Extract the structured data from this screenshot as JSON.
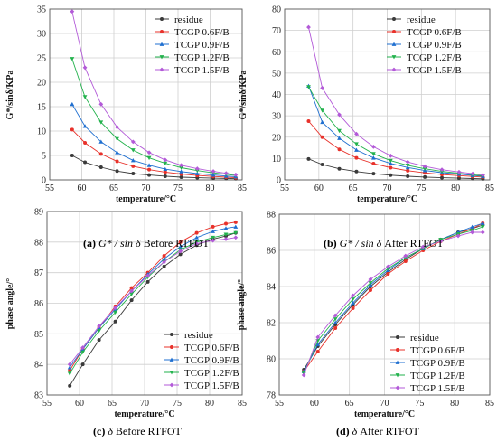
{
  "captions": [
    {
      "letter": "(a)",
      "symbol": "G* / sin δ",
      "text": "Before RTFOT"
    },
    {
      "letter": "(b)",
      "symbol": "G* / sin δ",
      "text": "After RTFOT"
    },
    {
      "letter": "(c)",
      "symbol": "δ",
      "text": "Before RTFOT"
    },
    {
      "letter": "(d)",
      "symbol": "δ",
      "text": "After RTFOT"
    }
  ],
  "series_styles": [
    {
      "name": "residue",
      "color": "#3a3a3a",
      "marker": "circle"
    },
    {
      "name": "TCGP 0.6F/B",
      "color": "#e8312a",
      "marker": "circle"
    },
    {
      "name": "TCGP 0.9F/B",
      "color": "#1f6fd0",
      "marker": "triangle"
    },
    {
      "name": "TCGP 1.2F/B",
      "color": "#22b24c",
      "marker": "triangle-down"
    },
    {
      "name": "TCGP 1.5F/B",
      "color": "#b35ad8",
      "marker": "diamond"
    }
  ],
  "chart_data": [
    {
      "type": "line",
      "xlabel": "temperature/°C",
      "ylabel": "G*/sinδ/KPa",
      "xlim": [
        55,
        85
      ],
      "ylim": [
        0,
        35
      ],
      "xticks": [
        55,
        60,
        65,
        70,
        75,
        80,
        85
      ],
      "yticks": [
        0,
        5,
        10,
        15,
        20,
        25,
        30,
        35
      ],
      "grid": true,
      "legend": "top-right",
      "x": [
        58.5,
        60.5,
        63,
        65.5,
        68,
        70.5,
        73,
        75.5,
        78,
        80.5,
        82.5,
        84
      ],
      "series": [
        {
          "name": "residue",
          "values": [
            5.0,
            3.6,
            2.6,
            1.8,
            1.3,
            1.0,
            0.75,
            0.55,
            0.45,
            0.35,
            0.3,
            0.25
          ]
        },
        {
          "name": "TCGP 0.6F/B",
          "values": [
            10.3,
            7.6,
            5.3,
            3.8,
            2.8,
            2.1,
            1.6,
            1.2,
            0.9,
            0.7,
            0.55,
            0.45
          ]
        },
        {
          "name": "TCGP 0.9F/B",
          "values": [
            15.5,
            11.0,
            7.8,
            5.6,
            4.0,
            3.0,
            2.2,
            1.7,
            1.3,
            1.0,
            0.8,
            0.65
          ]
        },
        {
          "name": "TCGP 1.2F/B",
          "values": [
            24.8,
            17.0,
            11.8,
            8.4,
            6.1,
            4.5,
            3.4,
            2.5,
            1.9,
            1.45,
            1.15,
            0.9
          ]
        },
        {
          "name": "TCGP 1.5F/B",
          "values": [
            34.5,
            23.0,
            15.5,
            10.8,
            7.8,
            5.6,
            4.1,
            3.0,
            2.3,
            1.75,
            1.35,
            1.05
          ]
        }
      ]
    },
    {
      "type": "line",
      "xlabel": "temperature/°C",
      "ylabel": "G*/sinδ/KPa",
      "xlim": [
        55,
        85
      ],
      "ylim": [
        0,
        80
      ],
      "xticks": [
        55,
        60,
        65,
        70,
        75,
        80,
        85
      ],
      "yticks": [
        0,
        10,
        20,
        30,
        40,
        50,
        60,
        70,
        80
      ],
      "grid": true,
      "legend": "top-right",
      "x": [
        58.5,
        60.5,
        63,
        65.5,
        68,
        70.5,
        73,
        75.5,
        78,
        80.5,
        82.5,
        84
      ],
      "series": [
        {
          "name": "residue",
          "values": [
            9.8,
            7.2,
            5.2,
            3.9,
            2.9,
            2.2,
            1.7,
            1.3,
            1.0,
            0.8,
            0.65,
            0.5
          ]
        },
        {
          "name": "TCGP 0.6F/B",
          "values": [
            27.5,
            20.0,
            14.3,
            10.3,
            7.6,
            5.7,
            4.3,
            3.3,
            2.5,
            2.0,
            1.6,
            1.3
          ]
        },
        {
          "name": "TCGP 0.9F/B",
          "values": [
            44.0,
            27.0,
            19.5,
            14.0,
            10.3,
            7.7,
            5.8,
            4.4,
            3.4,
            2.7,
            2.1,
            1.7
          ]
        },
        {
          "name": "TCGP 1.2F/B",
          "values": [
            43.5,
            32.5,
            23.0,
            16.8,
            12.2,
            9.0,
            6.8,
            5.2,
            4.0,
            3.1,
            2.4,
            1.9
          ]
        },
        {
          "name": "TCGP 1.5F/B",
          "values": [
            71.5,
            43.0,
            30.5,
            21.5,
            15.5,
            11.3,
            8.4,
            6.3,
            4.8,
            3.7,
            2.9,
            2.3
          ]
        }
      ]
    },
    {
      "type": "line",
      "xlabel": "temperature/°C",
      "ylabel": "phase angle/°",
      "xlim": [
        55,
        85
      ],
      "ylim": [
        83,
        89
      ],
      "xticks": [
        55,
        60,
        65,
        70,
        75,
        80,
        85
      ],
      "yticks": [
        83,
        84,
        85,
        86,
        87,
        88,
        89
      ],
      "grid": true,
      "legend": "bottom-right",
      "x": [
        58.5,
        60.5,
        63,
        65.5,
        68,
        70.5,
        73,
        75.5,
        78,
        80.5,
        82.5,
        84
      ],
      "series": [
        {
          "name": "residue",
          "values": [
            83.3,
            84.0,
            84.8,
            85.4,
            86.1,
            86.7,
            87.2,
            87.6,
            87.9,
            88.1,
            88.2,
            88.3
          ]
        },
        {
          "name": "TCGP 0.6F/B",
          "values": [
            83.8,
            84.5,
            85.2,
            85.9,
            86.5,
            87.0,
            87.55,
            88.0,
            88.3,
            88.5,
            88.6,
            88.65
          ]
        },
        {
          "name": "TCGP 0.9F/B",
          "values": [
            83.9,
            84.5,
            85.2,
            85.8,
            86.4,
            86.95,
            87.45,
            87.85,
            88.15,
            88.35,
            88.45,
            88.5
          ]
        },
        {
          "name": "TCGP 1.2F/B",
          "values": [
            83.7,
            84.4,
            85.1,
            85.7,
            86.3,
            86.85,
            87.35,
            87.75,
            88.0,
            88.15,
            88.25,
            88.3
          ]
        },
        {
          "name": "TCGP 1.5F/B",
          "values": [
            84.0,
            84.55,
            85.25,
            85.85,
            86.4,
            86.9,
            87.35,
            87.7,
            87.95,
            88.05,
            88.1,
            88.15
          ]
        }
      ]
    },
    {
      "type": "line",
      "xlabel": "temperature/°C",
      "ylabel": "phase angle/°",
      "xlim": [
        55,
        85
      ],
      "ylim": [
        78,
        88
      ],
      "xticks": [
        55,
        60,
        65,
        70,
        75,
        80,
        85
      ],
      "yticks": [
        78,
        80,
        82,
        84,
        86,
        88
      ],
      "grid": true,
      "legend": "bottom-right",
      "x": [
        58.5,
        60.5,
        63,
        65.5,
        68,
        70.5,
        73,
        75.5,
        78,
        80.5,
        82.5,
        84
      ],
      "series": [
        {
          "name": "residue",
          "values": [
            79.4,
            80.7,
            81.9,
            83.0,
            84.0,
            84.8,
            85.5,
            86.1,
            86.6,
            87.0,
            87.2,
            87.4
          ]
        },
        {
          "name": "TCGP 0.6F/B",
          "values": [
            79.3,
            80.4,
            81.7,
            82.8,
            83.8,
            84.7,
            85.4,
            86.0,
            86.5,
            86.9,
            87.2,
            87.5
          ]
        },
        {
          "name": "TCGP 0.9F/B",
          "values": [
            79.3,
            80.8,
            82.0,
            83.1,
            84.1,
            84.9,
            85.6,
            86.1,
            86.6,
            87.0,
            87.3,
            87.5
          ]
        },
        {
          "name": "TCGP 1.2F/B",
          "values": [
            79.2,
            81.0,
            82.2,
            83.3,
            84.2,
            85.0,
            85.6,
            86.1,
            86.6,
            86.9,
            87.1,
            87.3
          ]
        },
        {
          "name": "TCGP 1.5F/B",
          "values": [
            79.1,
            81.2,
            82.4,
            83.5,
            84.4,
            85.1,
            85.7,
            86.2,
            86.5,
            86.8,
            87.0,
            87.0
          ]
        }
      ]
    }
  ]
}
